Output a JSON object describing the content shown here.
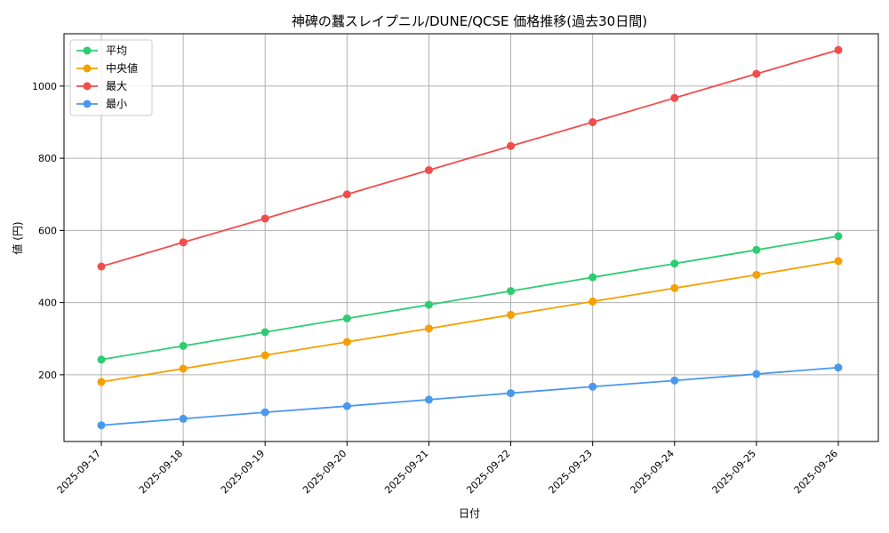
{
  "chart_data": {
    "type": "line",
    "title": "神碑の蠶スレイプニル/DUNE/QCSE 価格推移(過去30日間)",
    "xlabel": "日付",
    "ylabel": "値 (円)",
    "categories": [
      "2025-09-17",
      "2025-09-18",
      "2025-09-19",
      "2025-09-20",
      "2025-09-21",
      "2025-09-22",
      "2025-09-23",
      "2025-09-24",
      "2025-09-25",
      "2025-09-26"
    ],
    "yticks": [
      200,
      400,
      600,
      800,
      1000
    ],
    "ylim": [
      15,
      1145
    ],
    "grid": true,
    "legend_position": "top-left",
    "series": [
      {
        "name": "平均",
        "color": "#2ecc71",
        "values": [
          242,
          280,
          318,
          356,
          394,
          432,
          470,
          508,
          546,
          584
        ]
      },
      {
        "name": "中央値",
        "color": "#f5a000",
        "values": [
          180,
          217,
          254,
          291,
          328,
          366,
          403,
          440,
          477,
          515
        ]
      },
      {
        "name": "最大",
        "color": "#f24c4c",
        "values": [
          500,
          567,
          633,
          700,
          767,
          834,
          900,
          967,
          1034,
          1100
        ]
      },
      {
        "name": "最小",
        "color": "#4a98ee",
        "values": [
          60,
          78,
          96,
          113,
          131,
          149,
          167,
          184,
          202,
          220
        ]
      }
    ]
  }
}
